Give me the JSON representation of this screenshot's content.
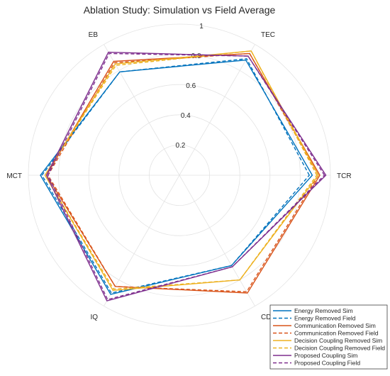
{
  "chart_data": {
    "type": "radar",
    "title": "Ablation Study: Simulation vs Field Average",
    "axes": [
      "TCR",
      "TEC",
      "EB",
      "MCT",
      "IQ",
      "CD"
    ],
    "rlim": [
      0,
      1
    ],
    "rticks": [
      0.2,
      0.4,
      0.6,
      0.8,
      1
    ],
    "rtick_labels": [
      "0.2",
      "0.4",
      "0.6",
      "0.8",
      "1"
    ],
    "grid": true,
    "legend": "bottom-right",
    "series": [
      {
        "name": "Energy Removed Sim",
        "color": "#0072BD",
        "dash": "solid",
        "values": [
          0.88,
          0.88,
          0.79,
          0.92,
          0.91,
          0.69
        ]
      },
      {
        "name": "Energy Removed Field",
        "color": "#0072BD",
        "dash": "dashed",
        "values": [
          0.86,
          0.89,
          0.79,
          0.91,
          0.9,
          0.69
        ]
      },
      {
        "name": "Communication Removed Sim",
        "color": "#D95319",
        "dash": "solid",
        "values": [
          0.93,
          0.93,
          0.87,
          0.88,
          0.85,
          0.9
        ]
      },
      {
        "name": "Communication Removed Field",
        "color": "#D95319",
        "dash": "dashed",
        "values": [
          0.92,
          0.93,
          0.86,
          0.87,
          0.85,
          0.89
        ]
      },
      {
        "name": "Decision Coupling Removed Sim",
        "color": "#EDB120",
        "dash": "solid",
        "values": [
          0.92,
          0.95,
          0.85,
          0.89,
          0.88,
          0.8
        ]
      },
      {
        "name": "Decision Coupling Removed Field",
        "color": "#EDB120",
        "dash": "dashed",
        "values": [
          0.91,
          0.95,
          0.84,
          0.89,
          0.87,
          0.8
        ]
      },
      {
        "name": "Proposed Coupling Sim",
        "color": "#7E2F8E",
        "dash": "solid",
        "values": [
          0.97,
          0.91,
          0.94,
          0.88,
          0.96,
          0.7
        ]
      },
      {
        "name": "Proposed Coupling Field",
        "color": "#7E2F8E",
        "dash": "dashed",
        "values": [
          0.96,
          0.91,
          0.93,
          0.87,
          0.95,
          0.7
        ]
      }
    ]
  }
}
